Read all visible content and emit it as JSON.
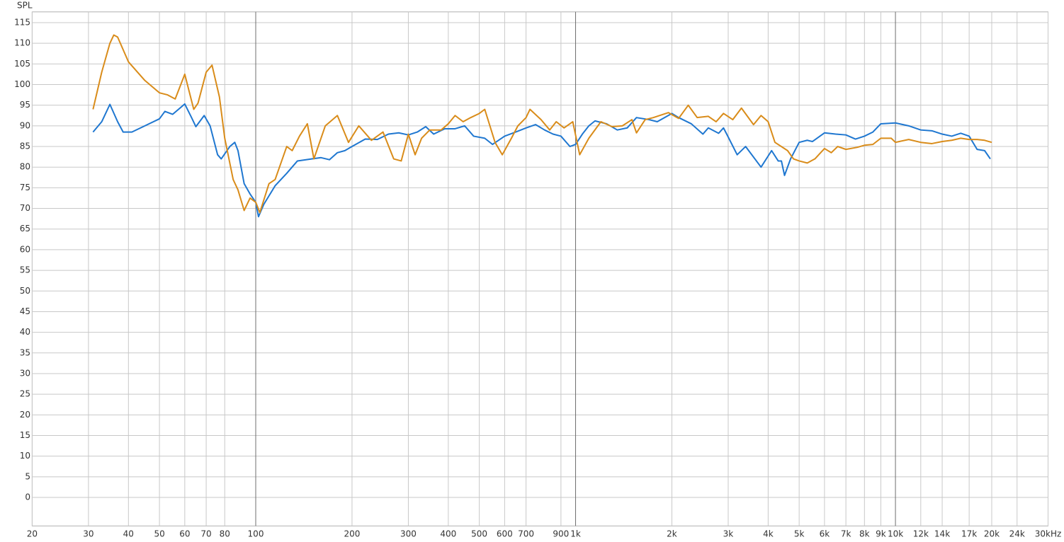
{
  "chart_data": {
    "type": "line",
    "ylabel": "SPL",
    "xscale": "log",
    "grid": true,
    "xlim": [
      20,
      30000
    ],
    "ylim": [
      -6.9,
      117.6
    ],
    "yticks": [
      0,
      5,
      10,
      15,
      20,
      25,
      30,
      35,
      40,
      45,
      50,
      55,
      60,
      65,
      70,
      75,
      80,
      85,
      90,
      95,
      100,
      105,
      110,
      115
    ],
    "xticks": [
      20,
      30,
      40,
      50,
      60,
      70,
      80,
      100,
      200,
      300,
      400,
      500,
      600,
      700,
      900,
      {
        "value": 1000,
        "label": "1k"
      },
      {
        "value": 2000,
        "label": "2k"
      },
      {
        "value": 3000,
        "label": "3k"
      },
      {
        "value": 4000,
        "label": "4k"
      },
      {
        "value": 5000,
        "label": "5k"
      },
      {
        "value": 6000,
        "label": "6k"
      },
      {
        "value": 7000,
        "label": "7k"
      },
      {
        "value": 8000,
        "label": "8k"
      },
      {
        "value": 9000,
        "label": "9k"
      },
      {
        "value": 10000,
        "label": "10k"
      },
      {
        "value": 12000,
        "label": "12k"
      },
      {
        "value": 14000,
        "label": "14k"
      },
      {
        "value": 17000,
        "label": "17k"
      },
      {
        "value": 20000,
        "label": "20k"
      },
      {
        "value": 24000,
        "label": "24k"
      },
      {
        "value": 30000,
        "label": "30kHz"
      }
    ],
    "series": [
      {
        "color": "#1f77d0",
        "x": [
          31,
          33,
          35,
          37,
          38.5,
          41,
          45,
          50,
          52,
          55,
          60,
          63,
          65,
          69,
          72,
          76,
          78,
          83,
          86,
          88,
          92,
          96,
          100,
          102,
          106,
          115,
          125,
          135,
          150,
          160,
          170,
          180,
          190,
          200,
          220,
          240,
          260,
          280,
          300,
          320,
          340,
          360,
          390,
          420,
          450,
          480,
          520,
          550,
          600,
          650,
          700,
          750,
          800,
          850,
          900,
          960,
          1000,
          1050,
          1100,
          1150,
          1250,
          1350,
          1450,
          1550,
          1700,
          1800,
          2000,
          2100,
          2300,
          2500,
          2600,
          2800,
          2900,
          3000,
          3200,
          3400,
          3800,
          4100,
          4300,
          4400,
          4500,
          4700,
          5000,
          5300,
          5500,
          6000,
          6500,
          7000,
          7500,
          8000,
          8500,
          9000,
          10000,
          11000,
          12000,
          13000,
          14000,
          15000,
          16000,
          17000,
          18000,
          19000,
          19800
        ],
        "values": [
          88.5,
          91,
          95.2,
          91,
          88.5,
          88.5,
          90,
          91.7,
          93.5,
          92.8,
          95.3,
          92,
          89.8,
          92.5,
          90,
          83,
          82,
          85,
          86,
          84,
          76,
          73.5,
          71.5,
          68,
          71,
          75.5,
          78.5,
          81.5,
          82,
          82.3,
          81.8,
          83.5,
          84,
          85,
          86.8,
          86.7,
          88,
          88.3,
          87.8,
          88.5,
          89.8,
          88,
          89.3,
          89.3,
          90,
          87.5,
          87,
          85.5,
          87.5,
          88.5,
          89.5,
          90.3,
          89,
          88,
          87.5,
          85,
          85.5,
          88,
          90,
          91.2,
          90.5,
          89,
          89.5,
          92,
          91.5,
          91,
          93,
          92,
          90.5,
          88,
          89.5,
          88.2,
          89.5,
          87.3,
          83,
          85,
          80,
          84,
          81.5,
          81.5,
          78,
          82,
          86,
          86.5,
          86.2,
          88.3,
          88,
          87.8,
          86.8,
          87.5,
          88.5,
          90.5,
          90.7,
          90,
          89,
          88.8,
          88,
          87.5,
          88.2,
          87.5,
          84.3,
          84,
          82
        ]
      },
      {
        "color": "#d98c1a",
        "x": [
          31,
          33,
          35,
          36,
          37,
          40,
          45,
          50,
          53,
          56,
          60,
          64,
          66,
          70,
          73,
          77,
          80,
          85,
          88,
          92,
          96,
          100,
          103,
          110,
          115,
          125,
          130,
          137,
          145,
          152,
          165,
          180,
          195,
          210,
          230,
          250,
          270,
          285,
          300,
          315,
          330,
          350,
          380,
          400,
          420,
          445,
          470,
          500,
          520,
          560,
          590,
          630,
          660,
          700,
          720,
          780,
          830,
          870,
          920,
          980,
          1030,
          1100,
          1200,
          1300,
          1400,
          1500,
          1550,
          1650,
          1750,
          1950,
          2100,
          2250,
          2400,
          2600,
          2750,
          2900,
          3100,
          3300,
          3600,
          3800,
          4000,
          4200,
          4600,
          4800,
          5000,
          5300,
          5600,
          6000,
          6300,
          6600,
          7000,
          7600,
          8000,
          8500,
          9000,
          9700,
          10000,
          11000,
          12000,
          13000,
          14000,
          15000,
          16000,
          17000,
          18000,
          19000,
          20000
        ],
        "values": [
          94,
          103,
          110,
          112,
          111.5,
          105.5,
          101,
          98,
          97.5,
          96.5,
          102.5,
          94,
          95.5,
          103,
          104.7,
          97,
          87,
          77,
          74.5,
          69.5,
          72.5,
          71.5,
          69,
          76,
          77,
          85,
          84,
          87.5,
          90.5,
          82,
          90,
          92.5,
          86,
          90,
          86.5,
          88.5,
          82,
          81.5,
          88,
          83,
          87,
          89,
          89,
          90.5,
          92.5,
          91,
          92,
          93,
          94,
          86,
          83,
          87,
          90,
          92,
          94,
          91.5,
          89,
          91,
          89.5,
          91,
          83,
          87,
          91,
          89.8,
          90,
          91.5,
          88.3,
          91.5,
          92,
          93.2,
          91.8,
          95,
          92,
          92.3,
          91,
          93,
          91.5,
          94.3,
          90.3,
          92.5,
          91,
          86,
          84,
          82,
          81.5,
          81,
          82,
          84.5,
          83.5,
          85,
          84.3,
          84.8,
          85.3,
          85.5,
          87,
          87,
          86,
          86.7,
          86,
          85.7,
          86.2,
          86.5,
          87,
          86.7,
          86.7,
          86.5,
          86
        ]
      }
    ]
  }
}
